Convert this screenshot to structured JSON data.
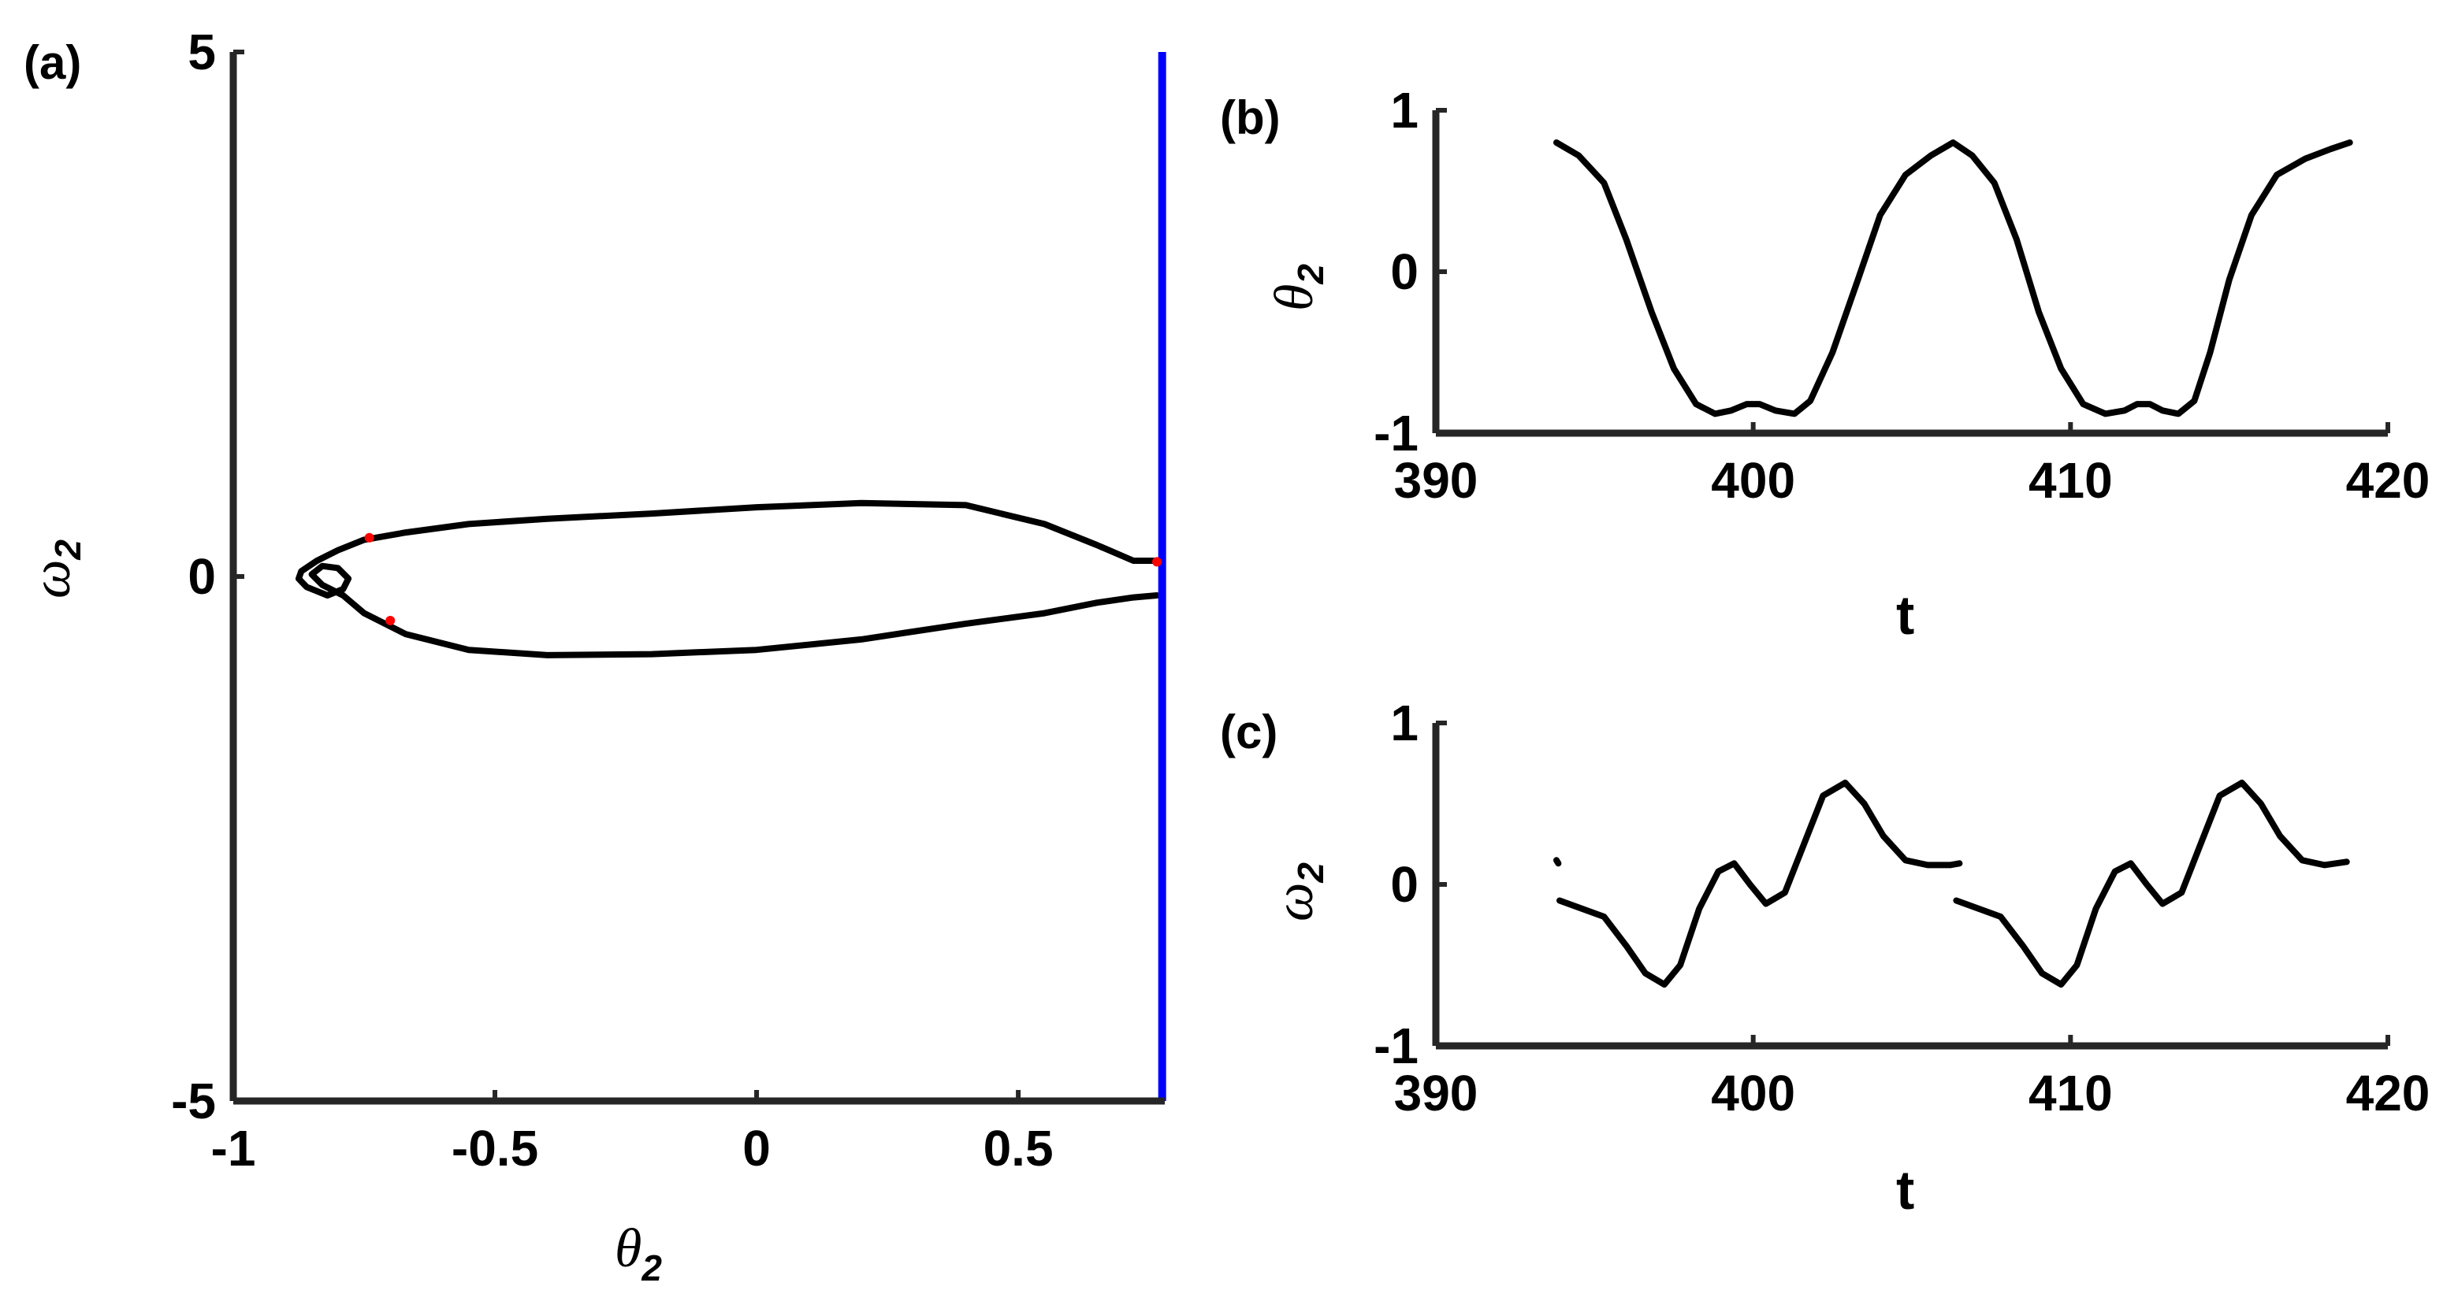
{
  "colors": {
    "curve": "#000000",
    "boundary": "#0000ff",
    "markers": "#ff0000",
    "axes": "#262626"
  },
  "chart_data": [
    {
      "panel": "(a)",
      "type": "line",
      "title": "",
      "xlabel": {
        "main": "θ",
        "sub": "2"
      },
      "ylabel": {
        "main": "ω",
        "sub": "2"
      },
      "xlim": [
        -1,
        0.78
      ],
      "ylim": [
        -5,
        5
      ],
      "x_ticks": [
        "-1",
        "-0.5",
        "0",
        "0.5"
      ],
      "x_tick_values": [
        -1,
        -0.5,
        0,
        0.5
      ],
      "y_ticks": [
        "-5",
        "0",
        "5"
      ],
      "y_tick_values": [
        -5,
        0,
        5
      ],
      "series": [
        {
          "kind": "phase-orbit",
          "x": [
            0.765,
            0.72,
            0.65,
            0.55,
            0.4,
            0.2,
            0.0,
            -0.2,
            -0.4,
            -0.55,
            -0.67,
            -0.75,
            -0.8,
            -0.84,
            -0.87,
            -0.875,
            -0.86,
            -0.82,
            -0.79,
            -0.78,
            -0.8,
            -0.83,
            -0.85,
            -0.83,
            -0.79,
            -0.75,
            -0.67,
            -0.55,
            -0.4,
            -0.2,
            0.0,
            0.2,
            0.4,
            0.55,
            0.65,
            0.72,
            0.765
          ],
          "y": [
            0.15,
            0.15,
            0.3,
            0.5,
            0.68,
            0.7,
            0.66,
            0.6,
            0.55,
            0.5,
            0.42,
            0.35,
            0.25,
            0.15,
            0.05,
            -0.02,
            -0.1,
            -0.18,
            -0.12,
            -0.02,
            0.08,
            0.1,
            0.02,
            -0.08,
            -0.18,
            -0.35,
            -0.55,
            -0.7,
            -0.75,
            -0.74,
            -0.7,
            -0.6,
            -0.45,
            -0.35,
            -0.25,
            -0.2,
            -0.18
          ]
        },
        {
          "kind": "boundary",
          "x": [
            0.775,
            0.775
          ],
          "y": [
            -5,
            5
          ]
        }
      ],
      "markers": {
        "x": [
          -0.74,
          -0.7,
          0.765
        ],
        "y": [
          0.37,
          -0.42,
          0.14
        ]
      }
    },
    {
      "panel": "(b)",
      "type": "line",
      "title": "",
      "xlabel": "t",
      "ylabel": {
        "main": "θ",
        "sub": "2"
      },
      "xlim": [
        390,
        420
      ],
      "ylim": [
        -1,
        1
      ],
      "x_ticks": [
        "390",
        "400",
        "410",
        "420"
      ],
      "x_tick_values": [
        390,
        400,
        410,
        420
      ],
      "y_ticks": [
        "-1",
        "0",
        "1"
      ],
      "y_tick_values": [
        -1,
        0,
        1
      ],
      "series": [
        {
          "x": [
            393.8,
            394.5,
            395.3,
            396.0,
            396.8,
            397.5,
            398.2,
            398.8,
            399.3,
            399.8,
            400.2,
            400.7,
            401.3,
            401.8,
            402.5,
            403.3,
            404.0,
            404.8,
            405.6,
            406.3,
            406.9,
            407.6,
            408.3,
            409.0,
            409.7,
            410.4,
            411.1,
            411.7,
            412.1,
            412.5,
            412.9,
            413.4,
            413.9,
            414.4,
            415.0,
            415.7,
            416.5,
            417.4,
            418.2,
            418.8
          ],
          "y": [
            0.8,
            0.72,
            0.55,
            0.2,
            -0.25,
            -0.6,
            -0.82,
            -0.88,
            -0.86,
            -0.82,
            -0.82,
            -0.86,
            -0.88,
            -0.8,
            -0.5,
            -0.05,
            0.35,
            0.6,
            0.72,
            0.8,
            0.72,
            0.55,
            0.2,
            -0.25,
            -0.6,
            -0.82,
            -0.88,
            -0.86,
            -0.82,
            -0.82,
            -0.86,
            -0.88,
            -0.8,
            -0.5,
            -0.05,
            0.35,
            0.6,
            0.7,
            0.76,
            0.8
          ]
        }
      ]
    },
    {
      "panel": "(c)",
      "type": "line",
      "title": "",
      "xlabel": "t",
      "ylabel": {
        "main": "ω",
        "sub": "2"
      },
      "xlim": [
        390,
        420
      ],
      "ylim": [
        -1,
        1
      ],
      "x_ticks": [
        "390",
        "400",
        "410",
        "420"
      ],
      "x_tick_values": [
        390,
        400,
        410,
        420
      ],
      "y_ticks": [
        "-1",
        "0",
        "1"
      ],
      "y_tick_values": [
        -1,
        0,
        1
      ],
      "series": [
        {
          "segment": 1,
          "x": [
            393.8,
            393.86
          ],
          "y": [
            0.15,
            0.13
          ]
        },
        {
          "segment": 2,
          "x": [
            393.9,
            394.6,
            395.3,
            396.0,
            396.6,
            397.2,
            397.7,
            398.3,
            398.9,
            399.4,
            399.9,
            400.4,
            401.0,
            401.6,
            402.2,
            402.9,
            403.5,
            404.1,
            404.8,
            405.5,
            406.2,
            406.5
          ],
          "y": [
            -0.1,
            -0.15,
            -0.2,
            -0.38,
            -0.55,
            -0.62,
            -0.5,
            -0.15,
            0.08,
            0.13,
            0.0,
            -0.12,
            -0.05,
            0.25,
            0.55,
            0.63,
            0.5,
            0.3,
            0.15,
            0.12,
            0.12,
            0.13
          ]
        },
        {
          "segment": 3,
          "x": [
            406.4,
            407.1,
            407.8,
            408.5,
            409.1,
            409.7,
            410.2,
            410.8,
            411.4,
            411.9,
            412.4,
            412.9,
            413.5,
            414.1,
            414.7,
            415.4,
            416.0,
            416.6,
            417.3,
            418.0,
            418.7
          ],
          "y": [
            -0.1,
            -0.15,
            -0.2,
            -0.38,
            -0.55,
            -0.62,
            -0.5,
            -0.15,
            0.08,
            0.13,
            0.0,
            -0.12,
            -0.05,
            0.25,
            0.55,
            0.63,
            0.5,
            0.3,
            0.15,
            0.12,
            0.14
          ]
        }
      ]
    }
  ]
}
